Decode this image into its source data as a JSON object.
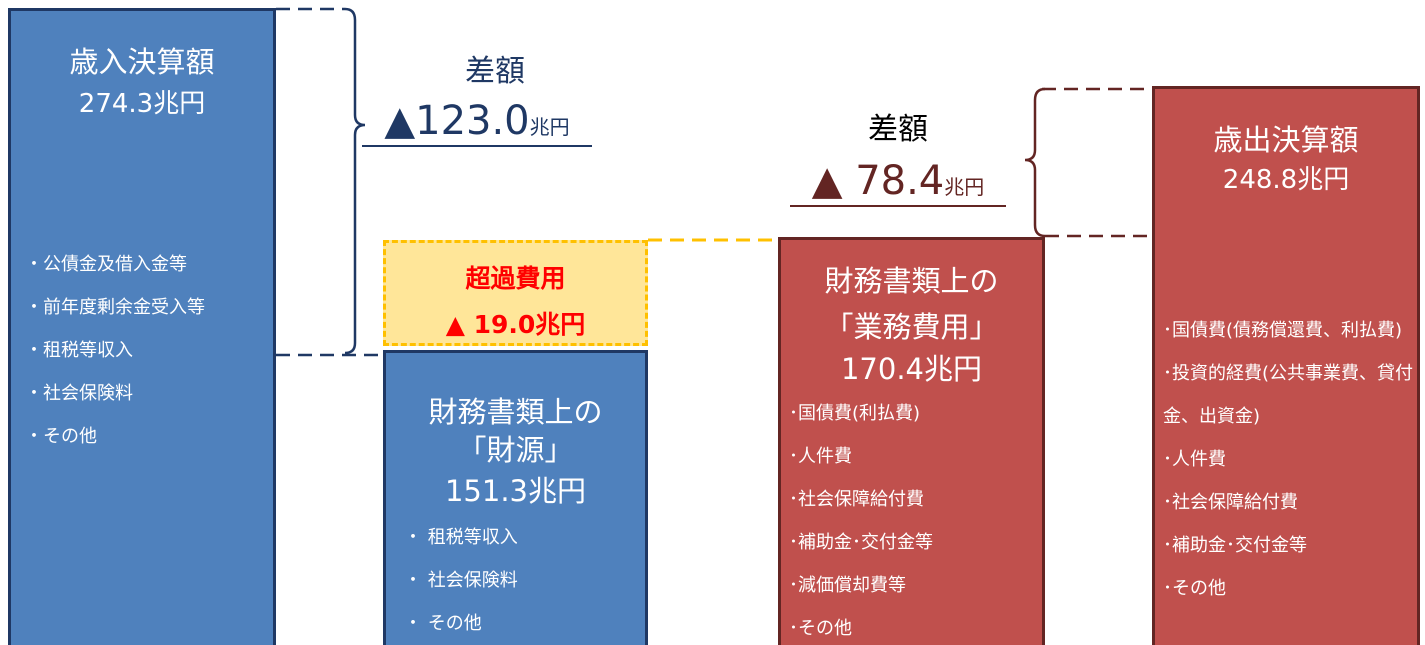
{
  "revenue": {
    "title": "歳入決算額",
    "amount": "274.3兆円",
    "items": [
      "・公債金及借入金等",
      "・前年度剰余金受入等",
      "・租税等収入",
      "・社会保険料",
      "・その他"
    ]
  },
  "difference_left": {
    "label": "差額",
    "value": "▲123.0",
    "unit": "兆円"
  },
  "excess": {
    "label": "超過費用",
    "amount": "▲ 19.0兆円"
  },
  "financial_sources": {
    "title_lines": [
      "財務書類上の",
      "「財源」"
    ],
    "amount": "151.3兆円",
    "items": [
      "・ 租税等収入",
      "・ 社会保険料",
      "・ その他"
    ]
  },
  "difference_right": {
    "label": "差額",
    "value": "▲ 78.4",
    "unit": "兆円"
  },
  "operating_costs": {
    "title_lines": [
      "財務書類上の",
      "「業務費用」"
    ],
    "amount": "170.4兆円",
    "items": [
      "･国債費(利払費)",
      "･人件費",
      "･社会保障給付費",
      "･補助金･交付金等",
      "･減価償却費等",
      "･その他"
    ]
  },
  "expenditure": {
    "title": "歳出決算額",
    "amount": "248.8兆円",
    "items": [
      "･国債費(債務償還費、利払費)",
      "･投資的経費(公共事業費、貸付金、出資金)",
      "･人件費",
      "･社会保障給付費",
      "･補助金･交付金等",
      "･その他"
    ]
  }
}
